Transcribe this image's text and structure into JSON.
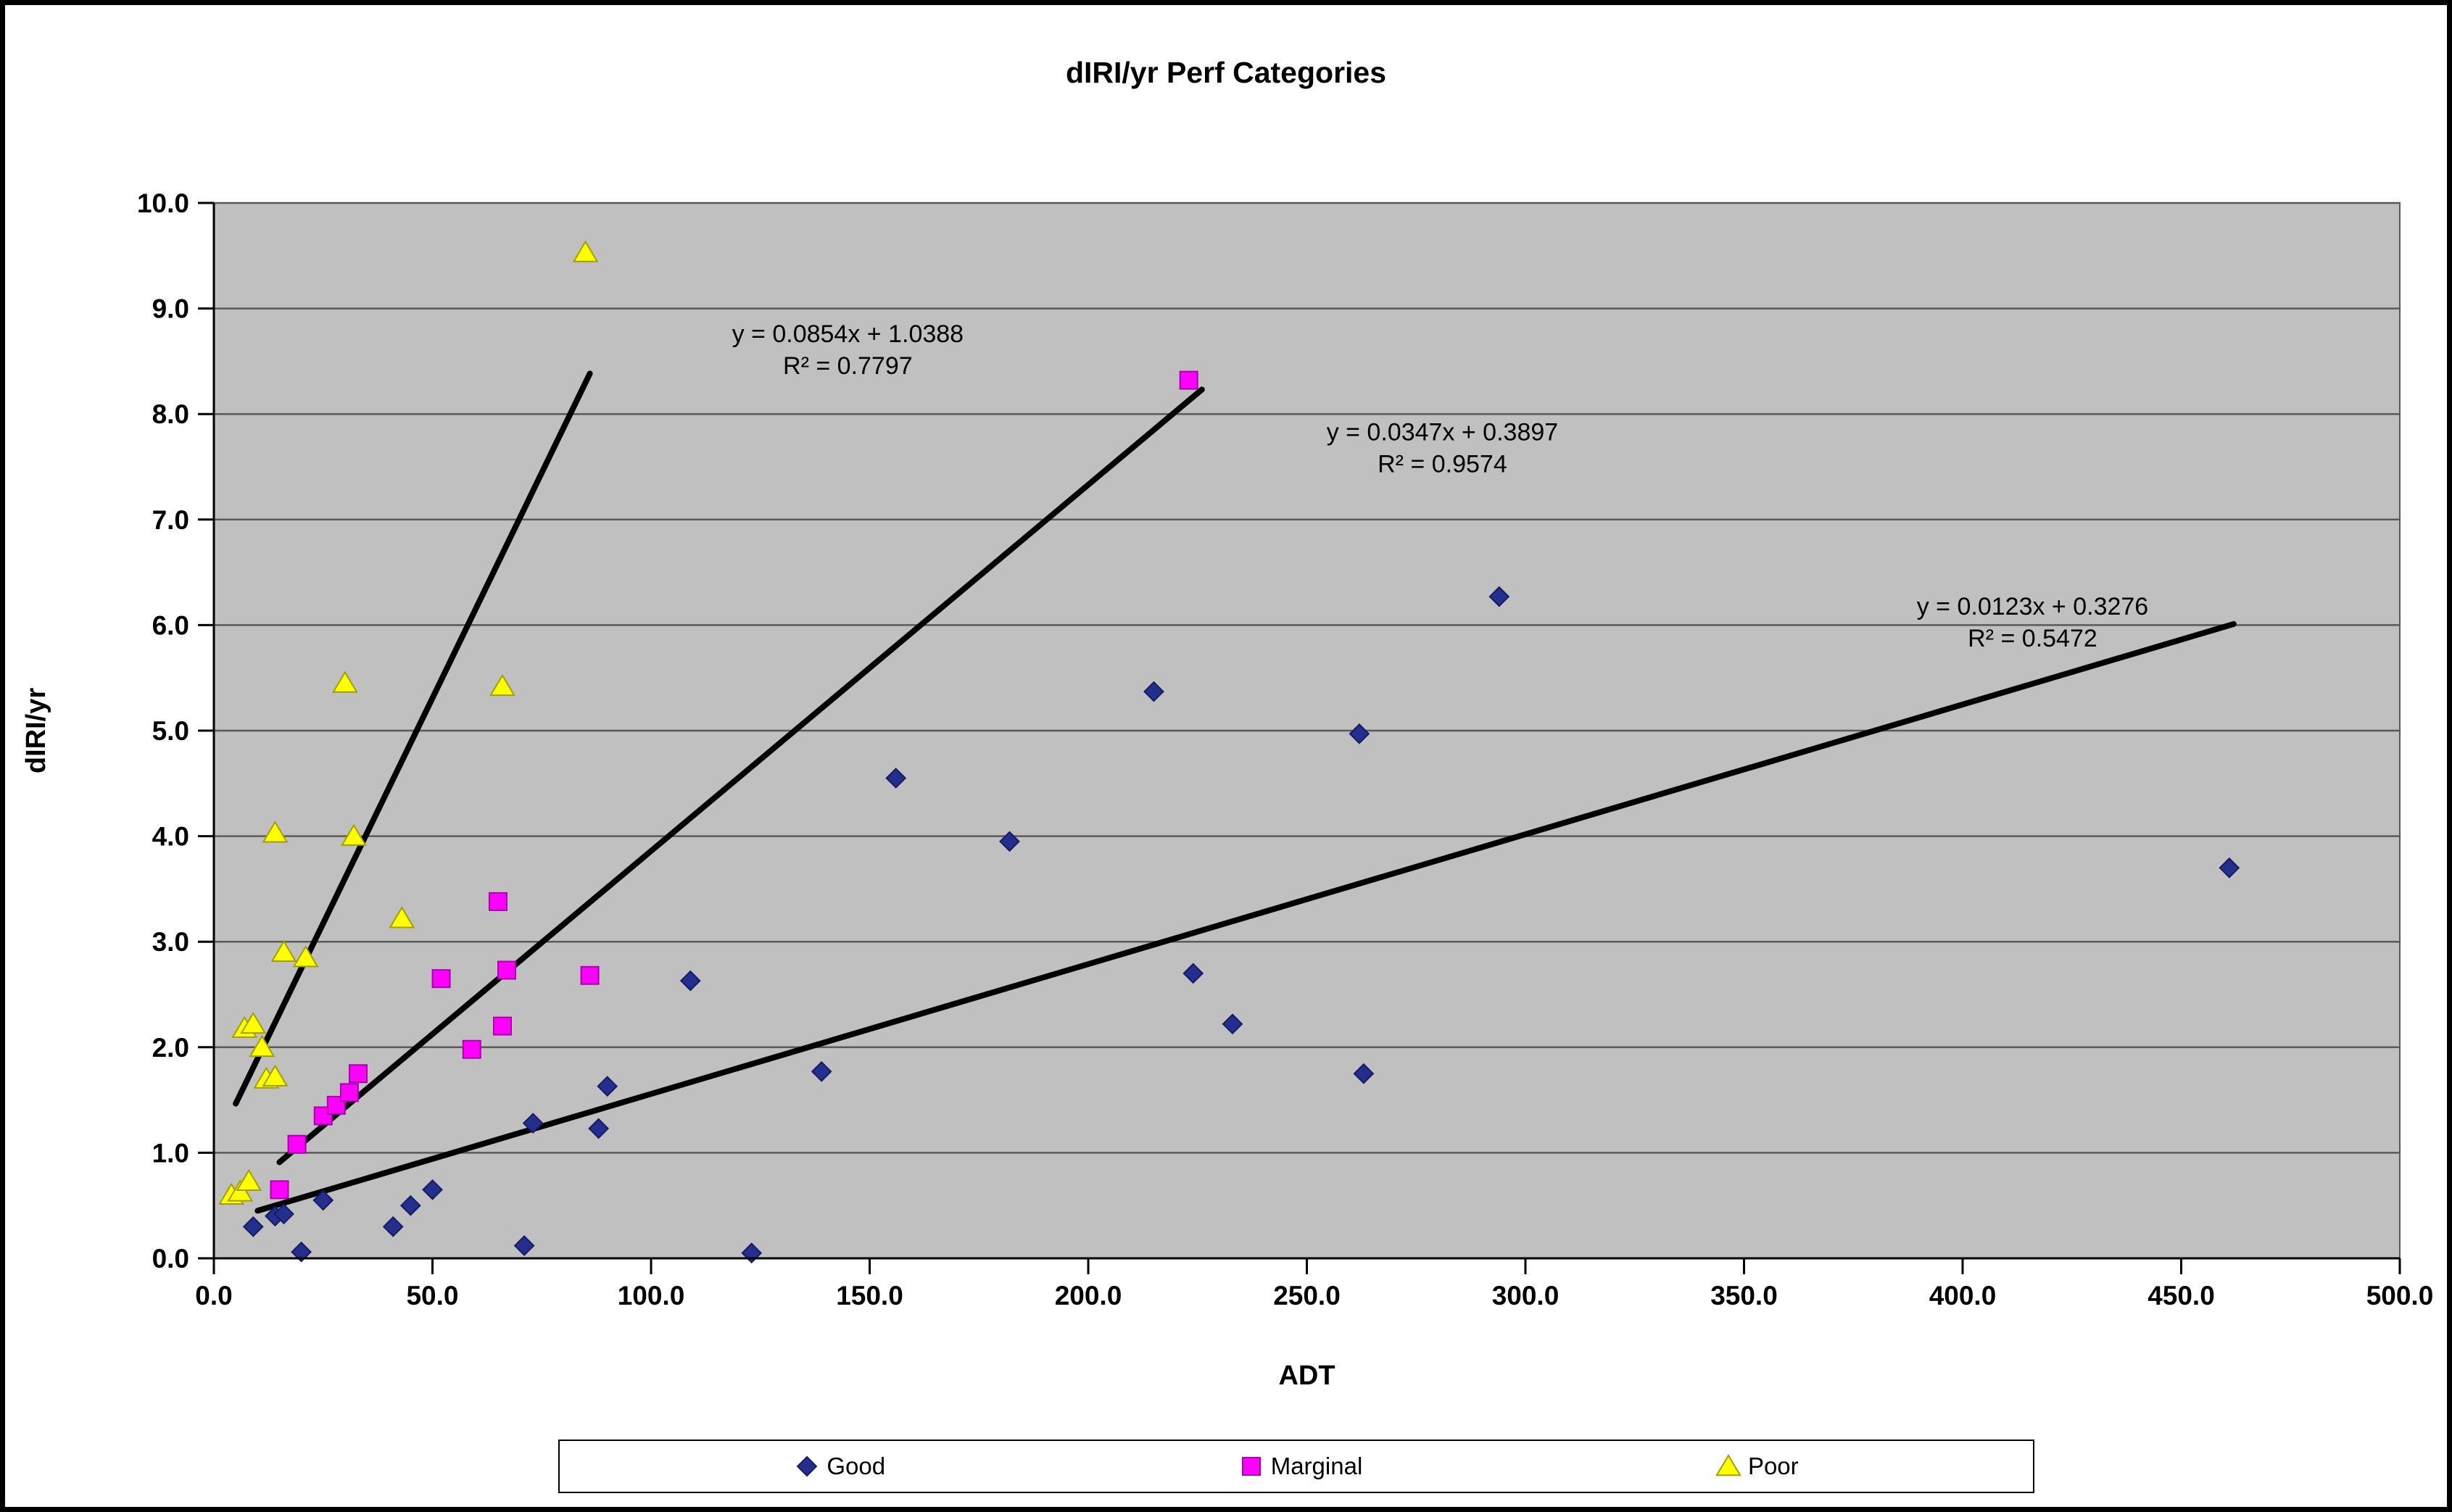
{
  "chart_data": {
    "type": "scatter",
    "title": "dIRI/yr Perf Categories",
    "xlabel": "ADT",
    "ylabel": "dIRI/yr",
    "xlim": [
      0,
      500
    ],
    "ylim": [
      0,
      10
    ],
    "grid": true,
    "legend_position": "bottom",
    "xtick_values": [
      0,
      50,
      100,
      150,
      200,
      250,
      300,
      350,
      400,
      450,
      500
    ],
    "xtick_labels": [
      "0.0",
      "50.0",
      "100.0",
      "150.0",
      "200.0",
      "250.0",
      "300.0",
      "350.0",
      "400.0",
      "450.0",
      "500.0"
    ],
    "ytick_values": [
      0,
      1,
      2,
      3,
      4,
      5,
      6,
      7,
      8,
      9,
      10
    ],
    "ytick_labels": [
      "0.0",
      "1.0",
      "2.0",
      "3.0",
      "4.0",
      "5.0",
      "6.0",
      "7.0",
      "8.0",
      "9.0",
      "10.0"
    ],
    "colors": {
      "plot_bg": "#c0c0c0",
      "grid": "#5a5a5a",
      "axis": "#000000",
      "trendline": "#000000"
    },
    "series": [
      {
        "name": "Good",
        "marker": "diamond",
        "color": "#232e8f",
        "stroke": "#151d5e",
        "points": [
          [
            9,
            0.3
          ],
          [
            14,
            0.4
          ],
          [
            16,
            0.42
          ],
          [
            20,
            0.06
          ],
          [
            25,
            0.55
          ],
          [
            41,
            0.3
          ],
          [
            45,
            0.5
          ],
          [
            50,
            0.65
          ],
          [
            71,
            0.12
          ],
          [
            73,
            1.28
          ],
          [
            88,
            1.23
          ],
          [
            90,
            1.63
          ],
          [
            109,
            2.63
          ],
          [
            123,
            0.05
          ],
          [
            139,
            1.77
          ],
          [
            156,
            4.55
          ],
          [
            182,
            3.95
          ],
          [
            215,
            5.37
          ],
          [
            224,
            2.7
          ],
          [
            233,
            2.22
          ],
          [
            262,
            4.97
          ],
          [
            263,
            1.75
          ],
          [
            294,
            6.27
          ],
          [
            461,
            3.7
          ]
        ]
      },
      {
        "name": "Marginal",
        "marker": "square",
        "color": "#ff00ff",
        "stroke": "#aa00aa",
        "points": [
          [
            15,
            0.65
          ],
          [
            19,
            1.08
          ],
          [
            25,
            1.35
          ],
          [
            28,
            1.45
          ],
          [
            31,
            1.57
          ],
          [
            33,
            1.75
          ],
          [
            52,
            2.65
          ],
          [
            59,
            1.98
          ],
          [
            65,
            3.38
          ],
          [
            66,
            2.2
          ],
          [
            67,
            2.73
          ],
          [
            86,
            2.68
          ],
          [
            223,
            8.32
          ]
        ]
      },
      {
        "name": "Poor",
        "marker": "triangle",
        "color": "#ffff00",
        "stroke": "#a0a000",
        "points": [
          [
            4,
            0.6
          ],
          [
            6,
            0.63
          ],
          [
            8,
            0.73
          ],
          [
            7,
            2.18
          ],
          [
            9,
            2.22
          ],
          [
            11,
            2.0
          ],
          [
            12,
            1.7
          ],
          [
            14,
            1.72
          ],
          [
            14,
            4.03
          ],
          [
            16,
            2.9
          ],
          [
            21,
            2.85
          ],
          [
            30,
            5.45
          ],
          [
            32,
            4.0
          ],
          [
            43,
            3.22
          ],
          [
            66,
            5.42
          ],
          [
            85,
            9.53
          ]
        ]
      }
    ],
    "trendlines": [
      {
        "series": "Poor",
        "slope": 0.0854,
        "intercept": 1.0388,
        "r2": 0.7797,
        "x_start": 5,
        "x_end": 86
      },
      {
        "series": "Marginal",
        "slope": 0.0347,
        "intercept": 0.3897,
        "r2": 0.9574,
        "x_start": 15,
        "x_end": 226
      },
      {
        "series": "Good",
        "slope": 0.0123,
        "intercept": 0.3276,
        "r2": 0.5472,
        "x_start": 10,
        "x_end": 462
      }
    ],
    "annotations": [
      {
        "lines": [
          "y = 0.0854x + 1.0388",
          "R² = 0.7797"
        ],
        "x": 145,
        "y": 8.68
      },
      {
        "lines": [
          "y = 0.0347x + 0.3897",
          "R² = 0.9574"
        ],
        "x": 281,
        "y": 7.75
      },
      {
        "lines": [
          "y = 0.0123x + 0.3276",
          "R² = 0.5472"
        ],
        "x": 416,
        "y": 6.1
      }
    ]
  }
}
